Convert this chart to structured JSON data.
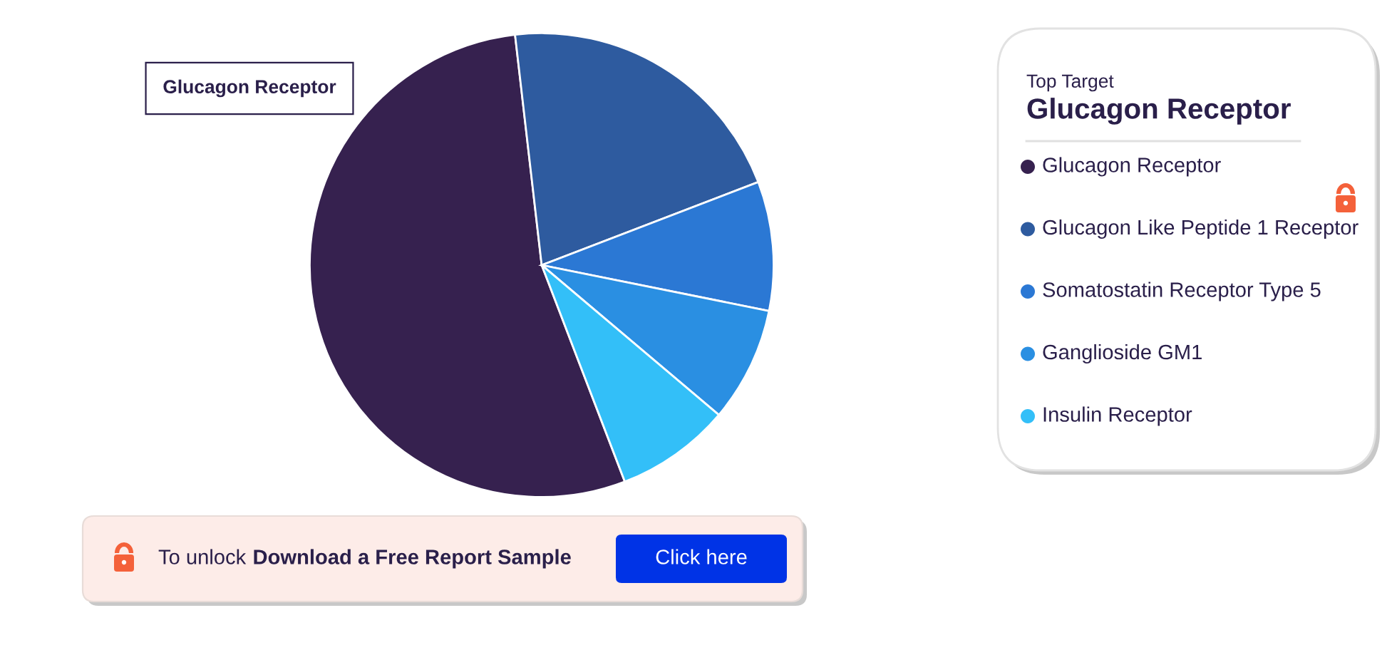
{
  "chart_data": {
    "type": "pie",
    "categories": [
      "Glucagon Receptor",
      "Glucagon Like Peptide 1 Receptor",
      "Somatostatin Receptor Type 5",
      "Ganglioside GM1",
      "Insulin Receptor"
    ],
    "values": [
      54,
      21,
      9,
      8,
      8
    ],
    "colors": [
      "#36214f",
      "#2e5b9f",
      "#2b78d4",
      "#2a8fe2",
      "#33bff8"
    ],
    "legend": "right",
    "legend_title": "Top Target",
    "annotations": [
      "Glucagon Receptor",
      "Glucagon Receptor",
      "To unlock",
      "Download a Free Report Sample",
      "Click here"
    ]
  }
}
